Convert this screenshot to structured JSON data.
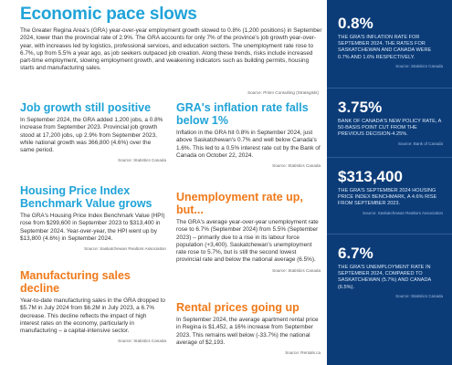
{
  "title": "Economic pace slows",
  "intro": {
    "text": "The Greater Regina Area's (GRA) year-over-year employment growth slowed to 0.8% (1,200 positions) in September 2024, lower than the provincial rate of 2.9%. The GRA accounts for only 7% of the province's job growth year-over-year, with increases led by logistics, professional services, and education sectors. The unemployment rate rose to 6.7%, up from 5.5% a year ago, as job seekers outpaced job creation. Along these trends, risks include increased part-time employment, slowing employment growth, and weakening indicators such as building permits, housing starts and manufacturing sales.",
    "source": "Source: Prism Consulting (Strategists)"
  },
  "sections": {
    "job_growth": {
      "heading": "Job growth still positive",
      "body": "In September 2024, the GRA added 1,200 jobs, a 0.8% increase from September 2023. Provincial job growth stood at 17,200 jobs, up 2.9% from September 2023, while national growth was 366,800 (4.6%) over the same period.",
      "source": "Source: Statistics Canada"
    },
    "inflation": {
      "heading": "GRA's inflation rate falls below 1%",
      "body": "Inflation in the GRA hit 0.8% in September 2024, just above Saskatchewan's 0.7% and well below Canada's 1.6%. This led to a 0.5% interest rate cut by the Bank of Canada on October 22, 2024.",
      "source": "Source: Statistics Canada"
    },
    "hpi": {
      "heading": "Housing Price Index Benchmark Value grows",
      "body": "The GRA's Housing Price Index Benchmark Value (HPI) rose from $299,600 in September 2023 to $313,400 in September 2024. Year-over-year, the HPI went up by $13,800 (4.6%) in September 2024.",
      "source": "Source: Saskatchewan Realtors Association"
    },
    "unemployment": {
      "heading": "Unemployment rate up, but...",
      "body": "The GRA's average year-over-year unemployment rate rose to 6.7% (September 2024) from 5.5% (September 2023) – primarily due to a rise in its labour force population (+3,400). Saskatchewan's unemployment rate rose to 5.7%, but is still the second lowest provincial rate and below the national average (6.5%).",
      "source": "Source: Statistics Canada"
    },
    "manufacturing": {
      "heading": "Manufacturing sales decline",
      "body": "Year-to-date manufacturing sales in the GRA dropped to $5.7M in July 2024 from $6.2M in July 2023, a 6.7% decrease. This decline reflects the impact of high interest rates on the economy, particularly in manufacturing – a capital-intensive sector.",
      "source": "Source: Statistics Canada"
    },
    "rental": {
      "heading": "Rental prices going up",
      "body": "In September 2024, the average apartment rental price in Regina is $1,452, a 16% increase from September 2023. This remains well below (-33.7%) the national average of $2,193.",
      "source": "Source: Rentals.ca"
    }
  },
  "sidebar": [
    {
      "value": "0.8%",
      "text": "The GRA's inflation rate for September 2024. The rates for Saskatchewan and Canada were 0.7% and 1.6% respectively.",
      "source": "Source: Statistics Canada"
    },
    {
      "value": "3.75%",
      "text": "Bank of Canada's new policy rate, a 50-basis point cut from the previous decision-4.25%.",
      "source": "Source: Bank of Canada"
    },
    {
      "value": "$313,400",
      "text": "The GRA's September 2024 Housing Price Index Benchmark, a 4.6% rise from September 2023.",
      "source": "Source: Saskatchewan Realtors Association"
    },
    {
      "value": "6.7%",
      "text": "The GRA's unemployment rate in September 2024, compared to Saskatchewan (5.7%) and Canada (6.5%).",
      "source": "Source: Statistics Canada"
    }
  ]
}
